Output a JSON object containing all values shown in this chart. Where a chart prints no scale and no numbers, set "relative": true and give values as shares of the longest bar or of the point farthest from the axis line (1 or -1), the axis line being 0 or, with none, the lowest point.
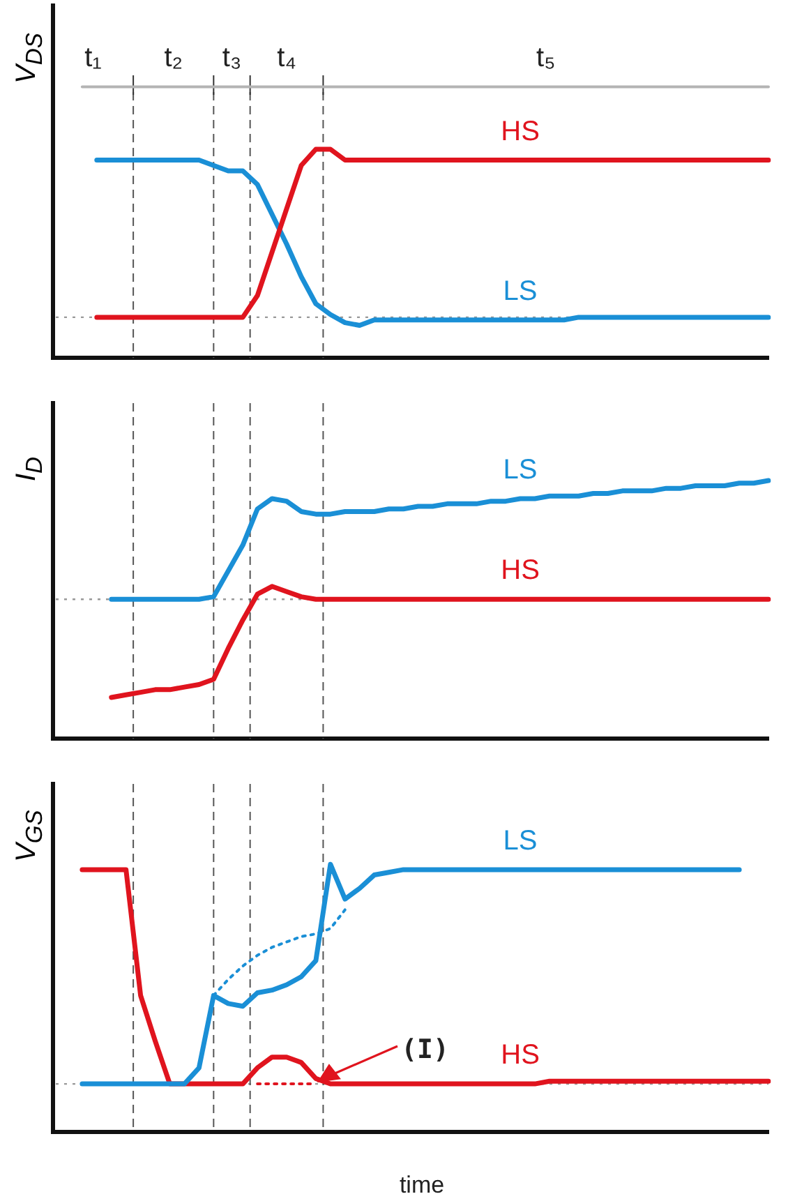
{
  "chart_data": [
    {
      "type": "line",
      "ylabel": "V$_{DS}$",
      "relative": true,
      "legend": false,
      "categories": [
        null,
        null,
        null,
        null,
        null,
        null,
        null,
        null,
        null,
        null,
        null,
        null,
        null,
        null,
        null,
        null,
        null,
        null,
        null,
        null,
        null,
        null,
        null,
        null,
        null,
        null,
        null,
        null,
        null,
        null,
        null,
        null,
        null,
        null,
        null,
        null,
        null,
        null,
        null,
        null,
        null,
        null,
        null,
        null,
        null,
        null,
        null,
        null,
        null,
        null
      ],
      "series": [
        {
          "color": "#b4b4b4",
          "values": [
            null,
            null,
            1,
            1,
            1,
            1,
            1,
            1,
            1,
            1,
            1,
            1,
            1,
            1,
            1,
            1,
            1,
            1,
            1,
            1,
            1,
            1,
            1,
            1,
            1,
            1,
            1,
            1,
            1,
            1,
            1,
            1,
            1,
            1,
            1,
            1,
            1,
            1,
            1,
            1,
            1,
            1,
            1,
            1,
            1,
            1,
            1,
            1,
            1,
            1
          ]
        },
        {
          "name": "HS",
          "color": "#e0141e",
          "values": [
            null,
            null,
            null,
            0.15,
            0.15,
            0.15,
            0.15,
            0.15,
            0.15,
            0.15,
            0.15,
            0.15,
            0.15,
            0.15,
            0.23,
            0.39,
            0.55,
            0.71,
            0.77,
            0.77,
            0.73,
            0.73,
            0.73,
            0.73,
            0.73,
            0.73,
            0.73,
            0.73,
            0.73,
            0.73,
            0.73,
            0.73,
            0.73,
            0.73,
            0.73,
            0.73,
            0.73,
            0.73,
            0.73,
            0.73,
            0.73,
            0.73,
            0.73,
            0.73,
            0.73,
            0.73,
            0.73,
            0.73,
            0.73,
            0.73
          ]
        },
        {
          "name": "LS",
          "color": "#1a8fd6",
          "values": [
            null,
            null,
            null,
            0.73,
            0.73,
            0.73,
            0.73,
            0.73,
            0.73,
            0.73,
            0.73,
            0.71,
            0.69,
            0.69,
            0.64,
            0.53,
            0.42,
            0.3,
            0.2,
            0.16,
            0.13,
            0.12,
            0.14,
            0.14,
            0.14,
            0.14,
            0.14,
            0.14,
            0.14,
            0.14,
            0.14,
            0.14,
            0.14,
            0.14,
            0.14,
            0.14,
            0.15,
            0.15,
            0.15,
            0.15,
            0.15,
            0.15,
            0.15,
            0.15,
            0.15,
            0.15,
            0.15,
            0.15,
            0.15,
            0.15
          ]
        }
      ],
      "annotations": [
        "t₁",
        "t₂",
        "t₃",
        "t₄",
        "t₅"
      ],
      "ref_lines": [
        {
          "axis": "y",
          "value": 0.15,
          "color": "#999999",
          "line_style": "dotted"
        }
      ]
    },
    {
      "type": "line",
      "ylabel": "I$_{D}$",
      "relative": true,
      "legend": false,
      "categories": [
        null,
        null,
        null,
        null,
        null,
        null,
        null,
        null,
        null,
        null,
        null,
        null,
        null,
        null,
        null,
        null,
        null,
        null,
        null,
        null,
        null,
        null,
        null,
        null,
        null,
        null,
        null,
        null,
        null,
        null,
        null,
        null,
        null,
        null,
        null,
        null,
        null,
        null,
        null,
        null,
        null,
        null,
        null,
        null,
        null,
        null,
        null,
        null,
        null,
        null
      ],
      "series": [
        {
          "name": "LS",
          "color": "#1a8fd6",
          "values": [
            null,
            null,
            null,
            null,
            0.54,
            0.54,
            0.54,
            0.54,
            0.54,
            0.54,
            0.54,
            0.55,
            0.65,
            0.75,
            0.89,
            0.93,
            0.92,
            0.88,
            0.87,
            0.87,
            0.88,
            0.88,
            0.88,
            0.89,
            0.89,
            0.9,
            0.9,
            0.91,
            0.91,
            0.91,
            0.92,
            0.92,
            0.93,
            0.93,
            0.94,
            0.94,
            0.94,
            0.95,
            0.95,
            0.96,
            0.96,
            0.96,
            0.97,
            0.97,
            0.98,
            0.98,
            0.98,
            0.99,
            0.99,
            1
          ]
        },
        {
          "name": "HS",
          "color": "#e0141e",
          "values": [
            null,
            null,
            null,
            null,
            0.16,
            0.17,
            0.18,
            0.19,
            0.19,
            0.2,
            0.21,
            0.23,
            0.35,
            0.46,
            0.56,
            0.59,
            0.57,
            0.55,
            0.54,
            0.54,
            0.54,
            0.54,
            0.54,
            0.54,
            0.54,
            0.54,
            0.54,
            0.54,
            0.54,
            0.54,
            0.54,
            0.54,
            0.54,
            0.54,
            0.54,
            0.54,
            0.54,
            0.54,
            0.54,
            0.54,
            0.54,
            0.54,
            0.54,
            0.54,
            0.54,
            0.54,
            0.54,
            0.54,
            0.54,
            0.54
          ]
        }
      ],
      "ref_lines": [
        {
          "axis": "y",
          "value": 0.54,
          "color": "#999999",
          "line_style": "dotted"
        }
      ]
    },
    {
      "type": "line",
      "ylabel": "V$_{GS}$",
      "xlabel": "time",
      "relative": true,
      "legend": false,
      "categories": [
        null,
        null,
        null,
        null,
        null,
        null,
        null,
        null,
        null,
        null,
        null,
        null,
        null,
        null,
        null,
        null,
        null,
        null,
        null,
        null,
        null,
        null,
        null,
        null,
        null,
        null,
        null,
        null,
        null,
        null,
        null,
        null,
        null,
        null,
        null,
        null,
        null,
        null,
        null,
        null,
        null,
        null,
        null,
        null,
        null,
        null,
        null,
        null,
        null,
        null
      ],
      "series": [
        {
          "name": "LS",
          "color": "#1a8fd6",
          "values": [
            null,
            null,
            0.18,
            0.18,
            0.18,
            0.18,
            0.18,
            0.18,
            0.18,
            0.18,
            0.24,
            0.51,
            0.48,
            0.47,
            0.52,
            0.53,
            0.55,
            0.58,
            0.64,
            1,
            0.87,
            0.91,
            0.96,
            0.97,
            0.98,
            0.98,
            0.98,
            0.98,
            0.98,
            0.98,
            0.98,
            0.98,
            0.98,
            0.98,
            0.98,
            0.98,
            0.98,
            0.98,
            0.98,
            0.98,
            0.98,
            0.98,
            0.98,
            0.98,
            0.98,
            0.98,
            0.98,
            0.98,
            null,
            null
          ]
        },
        {
          "color": "#1a8fd6",
          "line_style": "dotted",
          "values": [
            null,
            null,
            null,
            null,
            null,
            null,
            null,
            null,
            null,
            null,
            null,
            0.51,
            0.57,
            0.62,
            0.66,
            0.69,
            0.71,
            0.73,
            0.74,
            0.76,
            0.83,
            null,
            null,
            null,
            null,
            null,
            null,
            null,
            null,
            null,
            null,
            null,
            null,
            null,
            null,
            null,
            null,
            null,
            null,
            null,
            null,
            null,
            null,
            null,
            null,
            null,
            null,
            null,
            null,
            null
          ]
        },
        {
          "name": "HS",
          "color": "#e0141e",
          "values": [
            null,
            null,
            0.98,
            0.98,
            0.98,
            0.98,
            0.51,
            0.34,
            0.18,
            0.18,
            0.18,
            0.18,
            0.18,
            0.18,
            0.24,
            0.28,
            0.28,
            0.26,
            0.2,
            0.18,
            0.18,
            0.18,
            0.18,
            0.18,
            0.18,
            0.18,
            0.18,
            0.18,
            0.18,
            0.18,
            0.18,
            0.18,
            0.18,
            0.18,
            0.19,
            0.19,
            0.19,
            0.19,
            0.19,
            0.19,
            0.19,
            0.19,
            0.19,
            0.19,
            0.19,
            0.19,
            0.19,
            0.19,
            0.19,
            0.19
          ]
        },
        {
          "color": "#e0141e",
          "line_style": "dotted",
          "values": [
            null,
            null,
            null,
            null,
            null,
            null,
            null,
            null,
            null,
            null,
            null,
            null,
            null,
            null,
            0.18,
            0.18,
            0.18,
            0.18,
            0.18,
            null,
            null,
            null,
            null,
            null,
            null,
            null,
            null,
            null,
            null,
            null,
            null,
            null,
            null,
            null,
            null,
            null,
            null,
            null,
            null,
            null,
            null,
            null,
            null,
            null,
            null,
            null,
            null,
            null,
            null,
            null
          ]
        }
      ],
      "ref_lines": [
        {
          "axis": "y",
          "value": 0.18,
          "color": "#999999",
          "line_style": "dotted"
        }
      ],
      "annotations": [
        "(I)"
      ]
    }
  ]
}
